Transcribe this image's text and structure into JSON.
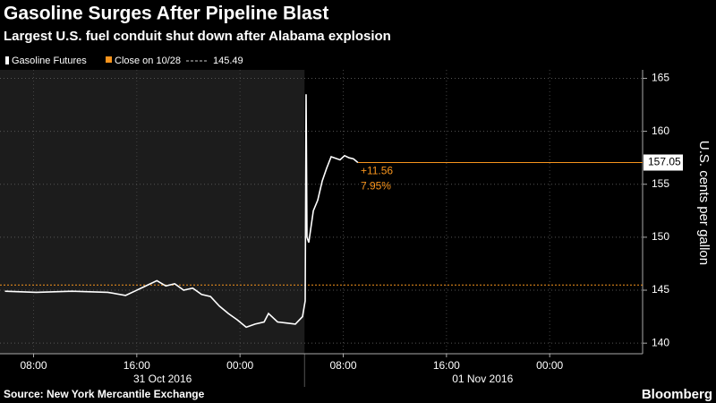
{
  "chart_data": {
    "type": "line",
    "title": "Gasoline Surges After Pipeline Blast",
    "subtitle": "Largest U.S. fuel conduit shut down after Alabama explosion",
    "y_label": "U.S. cents per gallon",
    "source": "Source: New York Mercantile Exchange",
    "brand": "Bloomberg",
    "series": [
      {
        "name": "Gasoline Futures",
        "color": "#ffffff",
        "x": [
          5.78,
          8.21,
          10.98,
          13.75,
          15.13,
          15.83,
          16.52,
          17.56,
          18.25,
          18.94,
          19.63,
          20.33,
          21.02,
          21.71,
          22.4,
          23.1,
          23.79,
          24.48,
          25.17,
          25.87,
          26.21,
          26.91,
          27.6,
          28.29,
          28.84,
          29.05,
          29.12,
          29.19,
          29.33,
          29.68,
          30.02,
          30.37,
          30.71,
          31.06,
          31.75,
          32.1,
          32.45,
          32.79,
          33.14
        ],
        "values": [
          144.9,
          144.8,
          144.9,
          144.8,
          144.5,
          144.9,
          145.3,
          145.9,
          145.4,
          145.6,
          145.0,
          145.2,
          144.6,
          144.4,
          143.5,
          142.8,
          142.2,
          141.5,
          141.8,
          142.0,
          142.8,
          142.0,
          141.9,
          141.8,
          142.5,
          144.0,
          163.5,
          150.0,
          149.5,
          152.5,
          153.5,
          155.3,
          156.5,
          157.6,
          157.3,
          157.7,
          157.5,
          157.4,
          157.05
        ]
      }
    ],
    "reference_line": {
      "name": "Close on 10/28",
      "value": 145.49,
      "color": "#f7941d"
    },
    "annotations": [
      "+11.56",
      "7.95%"
    ],
    "annotation_color": "#f7941d",
    "shade_until": 29,
    "xlim": [
      5.4,
      55.2
    ],
    "xticks": [
      {
        "value": 8,
        "label": "08:00"
      },
      {
        "value": 16,
        "label": "16:00"
      },
      {
        "value": 24,
        "label": "00:00"
      },
      {
        "value": 32,
        "label": "08:00"
      },
      {
        "value": 40,
        "label": "16:00"
      },
      {
        "value": 48,
        "label": "00:00"
      }
    ],
    "date_labels": [
      {
        "value": 18,
        "label": "31 Oct 2016"
      },
      {
        "value": 42.8,
        "label": "01 Nov 2016"
      }
    ],
    "ylim": [
      139,
      165.8
    ],
    "yticks": [
      140,
      145,
      150,
      155,
      160,
      165
    ],
    "grid": true
  }
}
